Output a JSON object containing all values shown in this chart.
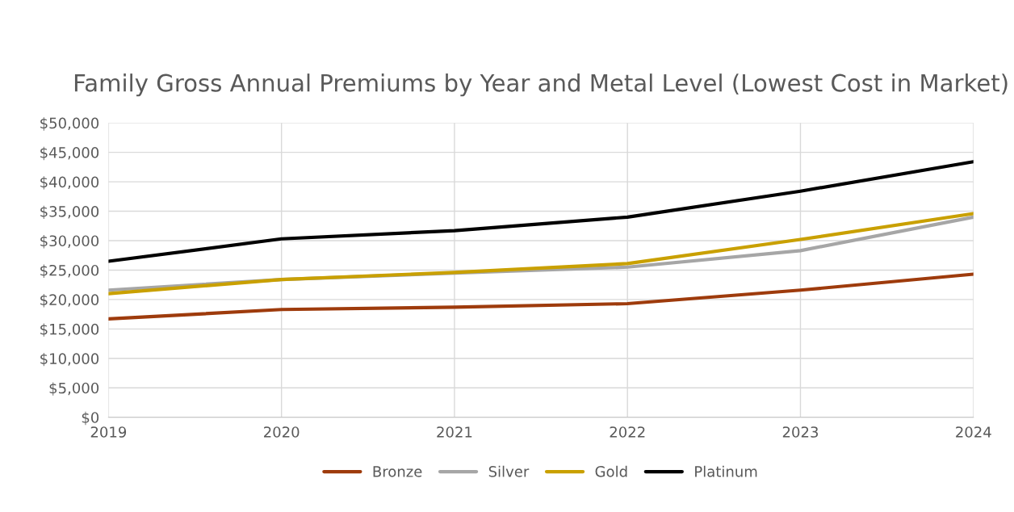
{
  "chart_data": {
    "type": "line",
    "title": "Family Gross Annual Premiums by Year and Metal Level (Lowest Cost in Market)",
    "x": [
      2019,
      2020,
      2021,
      2022,
      2023,
      2024
    ],
    "series": [
      {
        "name": "Bronze",
        "color": "#9e3b0c",
        "values": [
          16700,
          18300,
          18700,
          19300,
          21600,
          24300
        ]
      },
      {
        "name": "Silver",
        "color": "#a6a6a6",
        "values": [
          21600,
          23400,
          24500,
          25500,
          28300,
          34000
        ]
      },
      {
        "name": "Gold",
        "color": "#c9a000",
        "values": [
          21000,
          23400,
          24600,
          26100,
          30200,
          34600
        ]
      },
      {
        "name": "Platinum",
        "color": "#000000",
        "values": [
          26500,
          30300,
          31700,
          34000,
          38400,
          43400
        ]
      }
    ],
    "xlim": [
      2019,
      2024
    ],
    "xticks": [
      2019,
      2020,
      2021,
      2022,
      2023,
      2024
    ],
    "ylim": [
      0,
      50000
    ],
    "yticks": [
      {
        "value": 0,
        "label": "$0"
      },
      {
        "value": 5000,
        "label": "$5,000"
      },
      {
        "value": 10000,
        "label": "$10,000"
      },
      {
        "value": 15000,
        "label": "$15,000"
      },
      {
        "value": 20000,
        "label": "$20,000"
      },
      {
        "value": 25000,
        "label": "$25,000"
      },
      {
        "value": 30000,
        "label": "$30,000"
      },
      {
        "value": 35000,
        "label": "$35,000"
      },
      {
        "value": 40000,
        "label": "$40,000"
      },
      {
        "value": 45000,
        "label": "$45,000"
      },
      {
        "value": 50000,
        "label": "$50,000"
      }
    ],
    "grid": true,
    "legend": "bottom",
    "marker": "none",
    "line_style": "solid"
  }
}
